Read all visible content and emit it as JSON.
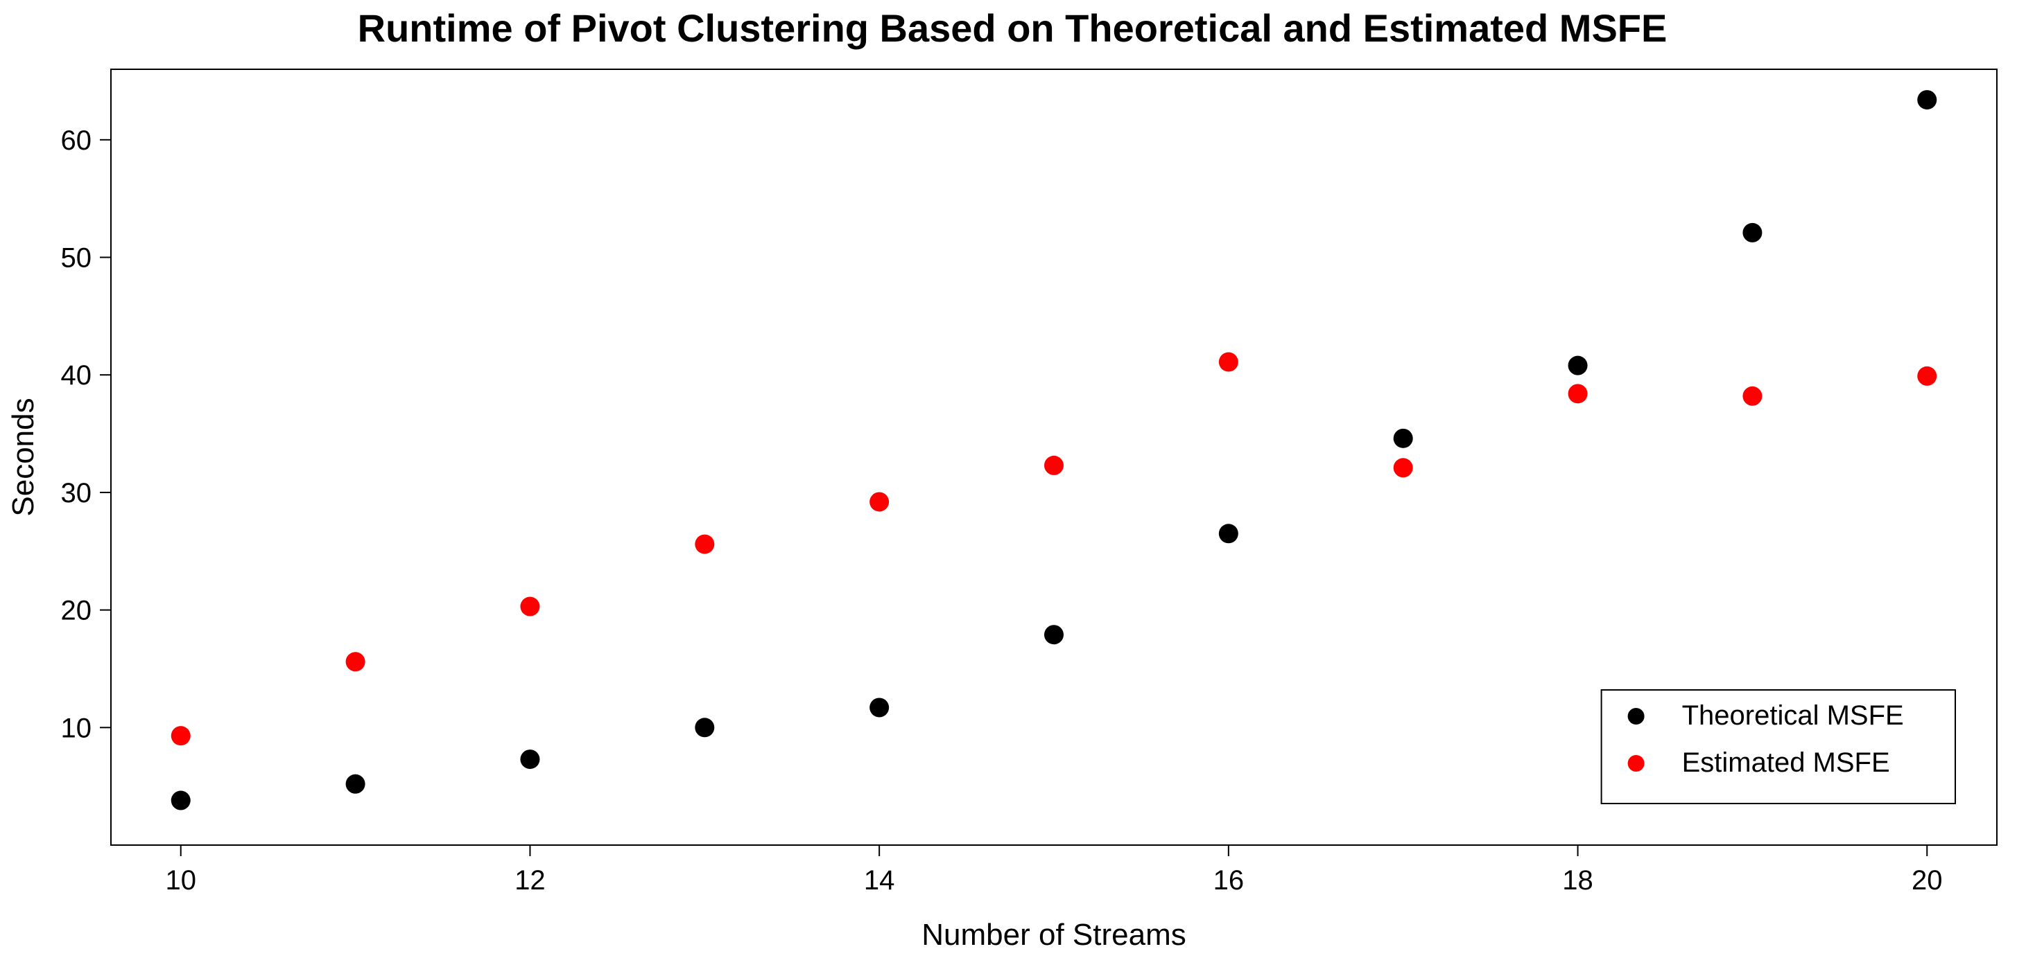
{
  "chart": {
    "type": "scatter",
    "title": "Runtime of Pivot Clustering Based on Theoretical and Estimated MSFE",
    "title_fontsize": 28,
    "title_fontweight": "bold",
    "xlabel": "Number of Streams",
    "ylabel": "Seconds",
    "label_fontsize": 22,
    "tick_fontsize": 20,
    "background_color": "#ffffff",
    "plot_border_color": "#000000",
    "xlim": [
      9.6,
      20.4
    ],
    "ylim": [
      0,
      66
    ],
    "xticks": [
      10,
      12,
      14,
      16,
      18,
      20
    ],
    "yticks": [
      10,
      20,
      30,
      40,
      50,
      60
    ],
    "marker_radius": 7,
    "series": [
      {
        "name": "Theoretical MSFE",
        "color": "#000000",
        "marker": "circle",
        "x": [
          10,
          11,
          12,
          13,
          14,
          15,
          16,
          17,
          18,
          19,
          20
        ],
        "y": [
          3.8,
          5.2,
          7.3,
          10.0,
          11.7,
          17.9,
          26.5,
          34.6,
          40.8,
          52.1,
          63.4
        ]
      },
      {
        "name": "Estimated MSFE",
        "color": "#ff0000",
        "marker": "circle",
        "x": [
          10,
          11,
          12,
          13,
          14,
          15,
          16,
          17,
          18,
          19,
          20
        ],
        "y": [
          9.3,
          15.6,
          20.3,
          25.6,
          29.2,
          32.3,
          41.1,
          32.1,
          38.4,
          38.2,
          39.9
        ]
      }
    ],
    "legend": {
      "entries": [
        "Theoretical MSFE",
        "Estimated MSFE"
      ],
      "colors": [
        "#000000",
        "#ff0000"
      ],
      "fontsize": 20,
      "position": "bottom-right"
    }
  }
}
